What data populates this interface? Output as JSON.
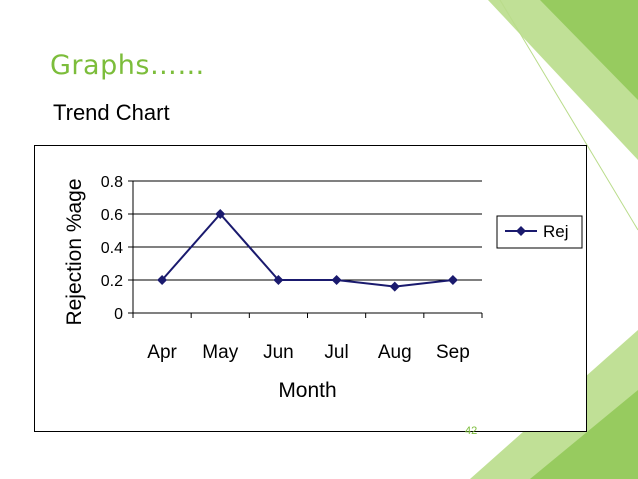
{
  "slide": {
    "title": "Graphs……",
    "subtitle": "Trend Chart",
    "page_number": "42",
    "accent_color": "#7cbd3b"
  },
  "chart_data": {
    "type": "line",
    "categories": [
      "Apr",
      "May",
      "Jun",
      "Jul",
      "Aug",
      "Sep"
    ],
    "series": [
      {
        "name": "Rej",
        "values": [
          0.2,
          0.6,
          0.2,
          0.2,
          0.16,
          0.2
        ],
        "color": "#1a1a6e",
        "marker": "diamond"
      }
    ],
    "xlabel": "Month",
    "ylabel": "Rejection %age",
    "ylim": [
      0,
      0.8
    ],
    "yticks": [
      "0",
      "0.2",
      "0.4",
      "0.6",
      "0.8"
    ],
    "grid": true,
    "legend": "right"
  }
}
